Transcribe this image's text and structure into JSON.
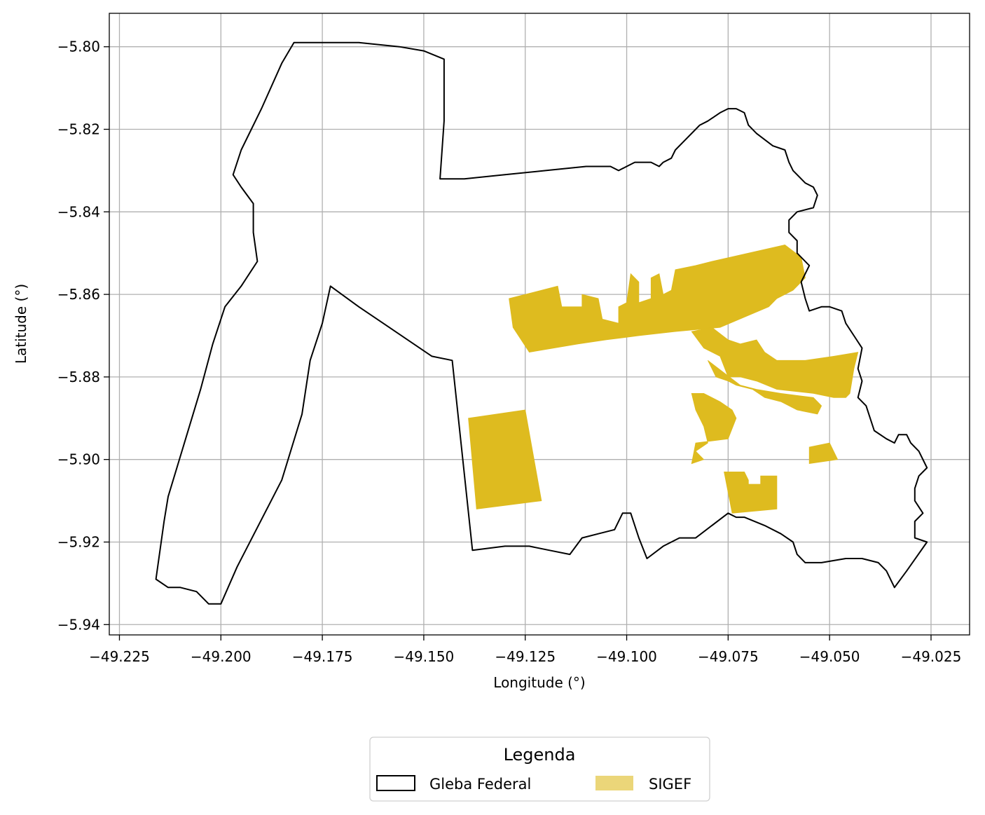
{
  "map": {
    "xlabel": "Longitude (°)",
    "ylabel": "Latitude (°)",
    "x_ticks": [
      "−49.225",
      "−49.200",
      "−49.175",
      "−49.150",
      "−49.125",
      "−49.100",
      "−49.075",
      "−49.050",
      "−49.025"
    ],
    "y_ticks": [
      "−5.80",
      "−5.82",
      "−5.84",
      "−5.86",
      "−5.88",
      "−5.90",
      "−5.92",
      "−5.94"
    ],
    "x_range": [
      -49.2275,
      -49.0155
    ],
    "y_range": [
      -5.9425,
      -5.7919
    ],
    "grid": true,
    "legend": {
      "title": "Legenda",
      "placement": "bottom-center",
      "items": [
        {
          "label": "Gleba Federal",
          "style": "outline",
          "color": "#000000"
        },
        {
          "label": "SIGEF",
          "style": "fill",
          "color": "#DEBB1F"
        }
      ]
    },
    "colors": {
      "gleba_edge": "#000000",
      "sigef_fill": "#DEBB1F",
      "grid": "#b0b0b0"
    },
    "gleba_federal_boundary": [
      [
        -49.216,
        -5.929
      ],
      [
        -49.213,
        -5.931
      ],
      [
        -49.21,
        -5.931
      ],
      [
        -49.206,
        -5.932
      ],
      [
        -49.203,
        -5.935
      ],
      [
        -49.2,
        -5.935
      ],
      [
        -49.196,
        -5.926
      ],
      [
        -49.185,
        -5.905
      ],
      [
        -49.18,
        -5.889
      ],
      [
        -49.178,
        -5.876
      ],
      [
        -49.175,
        -5.867
      ],
      [
        -49.173,
        -5.858
      ],
      [
        -49.166,
        -5.863
      ],
      [
        -49.16,
        -5.867
      ],
      [
        -49.148,
        -5.875
      ],
      [
        -49.143,
        -5.876
      ],
      [
        -49.138,
        -5.922
      ],
      [
        -49.13,
        -5.921
      ],
      [
        -49.124,
        -5.921
      ],
      [
        -49.119,
        -5.922
      ],
      [
        -49.114,
        -5.923
      ],
      [
        -49.111,
        -5.919
      ],
      [
        -49.107,
        -5.918
      ],
      [
        -49.103,
        -5.917
      ],
      [
        -49.101,
        -5.913
      ],
      [
        -49.099,
        -5.913
      ],
      [
        -49.097,
        -5.919
      ],
      [
        -49.095,
        -5.924
      ],
      [
        -49.091,
        -5.921
      ],
      [
        -49.087,
        -5.919
      ],
      [
        -49.083,
        -5.919
      ],
      [
        -49.075,
        -5.913
      ],
      [
        -49.073,
        -5.914
      ],
      [
        -49.071,
        -5.914
      ],
      [
        -49.066,
        -5.916
      ],
      [
        -49.062,
        -5.918
      ],
      [
        -49.059,
        -5.92
      ],
      [
        -49.058,
        -5.923
      ],
      [
        -49.056,
        -5.925
      ],
      [
        -49.052,
        -5.925
      ],
      [
        -49.046,
        -5.924
      ],
      [
        -49.042,
        -5.924
      ],
      [
        -49.038,
        -5.925
      ],
      [
        -49.036,
        -5.927
      ],
      [
        -49.034,
        -5.931
      ],
      [
        -49.031,
        -5.927
      ],
      [
        -49.026,
        -5.92
      ],
      [
        -49.029,
        -5.919
      ],
      [
        -49.029,
        -5.915
      ],
      [
        -49.027,
        -5.913
      ],
      [
        -49.029,
        -5.91
      ],
      [
        -49.029,
        -5.907
      ],
      [
        -49.028,
        -5.904
      ],
      [
        -49.026,
        -5.902
      ],
      [
        -49.028,
        -5.898
      ],
      [
        -49.03,
        -5.896
      ],
      [
        -49.031,
        -5.894
      ],
      [
        -49.033,
        -5.894
      ],
      [
        -49.034,
        -5.896
      ],
      [
        -49.036,
        -5.895
      ],
      [
        -49.039,
        -5.893
      ],
      [
        -49.04,
        -5.89
      ],
      [
        -49.041,
        -5.887
      ],
      [
        -49.043,
        -5.885
      ],
      [
        -49.042,
        -5.881
      ],
      [
        -49.043,
        -5.878
      ],
      [
        -49.042,
        -5.873
      ],
      [
        -49.044,
        -5.87
      ],
      [
        -49.046,
        -5.867
      ],
      [
        -49.047,
        -5.864
      ],
      [
        -49.05,
        -5.863
      ],
      [
        -49.052,
        -5.863
      ],
      [
        -49.055,
        -5.864
      ],
      [
        -49.056,
        -5.861
      ],
      [
        -49.057,
        -5.857
      ],
      [
        -49.055,
        -5.853
      ],
      [
        -49.058,
        -5.85
      ],
      [
        -49.058,
        -5.847
      ],
      [
        -49.06,
        -5.845
      ],
      [
        -49.06,
        -5.842
      ],
      [
        -49.058,
        -5.84
      ],
      [
        -49.054,
        -5.839
      ],
      [
        -49.053,
        -5.836
      ],
      [
        -49.054,
        -5.834
      ],
      [
        -49.056,
        -5.833
      ],
      [
        -49.057,
        -5.832
      ],
      [
        -49.059,
        -5.83
      ],
      [
        -49.06,
        -5.828
      ],
      [
        -49.061,
        -5.825
      ],
      [
        -49.064,
        -5.824
      ],
      [
        -49.068,
        -5.821
      ],
      [
        -49.07,
        -5.819
      ],
      [
        -49.071,
        -5.816
      ],
      [
        -49.073,
        -5.815
      ],
      [
        -49.075,
        -5.815
      ],
      [
        -49.077,
        -5.816
      ],
      [
        -49.08,
        -5.818
      ],
      [
        -49.082,
        -5.819
      ],
      [
        -49.083,
        -5.82
      ],
      [
        -49.086,
        -5.823
      ],
      [
        -49.088,
        -5.825
      ],
      [
        -49.089,
        -5.827
      ],
      [
        -49.091,
        -5.828
      ],
      [
        -49.092,
        -5.829
      ],
      [
        -49.094,
        -5.828
      ],
      [
        -49.096,
        -5.828
      ],
      [
        -49.098,
        -5.828
      ],
      [
        -49.1,
        -5.829
      ],
      [
        -49.102,
        -5.83
      ],
      [
        -49.104,
        -5.829
      ],
      [
        -49.11,
        -5.829
      ],
      [
        -49.12,
        -5.83
      ],
      [
        -49.13,
        -5.831
      ],
      [
        -49.14,
        -5.832
      ],
      [
        -49.146,
        -5.832
      ],
      [
        -49.145,
        -5.818
      ],
      [
        -49.145,
        -5.808
      ],
      [
        -49.145,
        -5.803
      ],
      [
        -49.15,
        -5.801
      ],
      [
        -49.156,
        -5.8
      ],
      [
        -49.166,
        -5.799
      ],
      [
        -49.175,
        -5.799
      ],
      [
        -49.182,
        -5.799
      ],
      [
        -49.185,
        -5.804
      ],
      [
        -49.19,
        -5.815
      ],
      [
        -49.195,
        -5.825
      ],
      [
        -49.197,
        -5.831
      ],
      [
        -49.195,
        -5.834
      ],
      [
        -49.192,
        -5.838
      ],
      [
        -49.192,
        -5.845
      ],
      [
        -49.191,
        -5.852
      ],
      [
        -49.195,
        -5.858
      ],
      [
        -49.199,
        -5.863
      ],
      [
        -49.202,
        -5.872
      ],
      [
        -49.205,
        -5.883
      ],
      [
        -49.209,
        -5.896
      ],
      [
        -49.213,
        -5.909
      ],
      [
        -49.214,
        -5.915
      ],
      [
        -49.216,
        -5.929
      ]
    ],
    "sigef_parcels": [
      [
        [
          -49.129,
          -5.861
        ],
        [
          -49.117,
          -5.858
        ],
        [
          -49.116,
          -5.863
        ],
        [
          -49.111,
          -5.863
        ],
        [
          -49.111,
          -5.86
        ],
        [
          -49.107,
          -5.861
        ],
        [
          -49.106,
          -5.866
        ],
        [
          -49.102,
          -5.867
        ],
        [
          -49.102,
          -5.863
        ],
        [
          -49.1,
          -5.862
        ],
        [
          -49.099,
          -5.855
        ],
        [
          -49.097,
          -5.857
        ],
        [
          -49.097,
          -5.862
        ],
        [
          -49.094,
          -5.861
        ],
        [
          -49.094,
          -5.856
        ],
        [
          -49.092,
          -5.855
        ],
        [
          -49.091,
          -5.86
        ],
        [
          -49.089,
          -5.859
        ],
        [
          -49.088,
          -5.854
        ],
        [
          -49.083,
          -5.853
        ],
        [
          -49.079,
          -5.852
        ],
        [
          -49.061,
          -5.848
        ],
        [
          -49.057,
          -5.851
        ],
        [
          -49.056,
          -5.856
        ],
        [
          -49.059,
          -5.859
        ],
        [
          -49.063,
          -5.861
        ],
        [
          -49.065,
          -5.863
        ],
        [
          -49.077,
          -5.868
        ],
        [
          -49.088,
          -5.869
        ],
        [
          -49.097,
          -5.87
        ],
        [
          -49.105,
          -5.871
        ],
        [
          -49.112,
          -5.872
        ],
        [
          -49.124,
          -5.874
        ],
        [
          -49.128,
          -5.868
        ]
      ],
      [
        [
          -49.084,
          -5.869
        ],
        [
          -49.079,
          -5.868
        ],
        [
          -49.075,
          -5.871
        ],
        [
          -49.072,
          -5.872
        ],
        [
          -49.068,
          -5.871
        ],
        [
          -49.066,
          -5.874
        ],
        [
          -49.063,
          -5.876
        ],
        [
          -49.056,
          -5.876
        ],
        [
          -49.049,
          -5.875
        ],
        [
          -49.043,
          -5.874
        ],
        [
          -49.044,
          -5.878
        ],
        [
          -49.045,
          -5.884
        ],
        [
          -49.046,
          -5.885
        ],
        [
          -49.049,
          -5.885
        ],
        [
          -49.054,
          -5.884
        ],
        [
          -49.063,
          -5.883
        ],
        [
          -49.068,
          -5.881
        ],
        [
          -49.072,
          -5.88
        ],
        [
          -49.075,
          -5.88
        ],
        [
          -49.077,
          -5.875
        ],
        [
          -49.081,
          -5.873
        ]
      ],
      [
        [
          -49.08,
          -5.876
        ],
        [
          -49.078,
          -5.88
        ],
        [
          -49.075,
          -5.881
        ],
        [
          -49.073,
          -5.882
        ],
        [
          -49.069,
          -5.883
        ],
        [
          -49.066,
          -5.885
        ],
        [
          -49.062,
          -5.886
        ],
        [
          -49.058,
          -5.888
        ],
        [
          -49.053,
          -5.889
        ],
        [
          -49.052,
          -5.887
        ],
        [
          -49.054,
          -5.885
        ],
        [
          -49.062,
          -5.884
        ],
        [
          -49.068,
          -5.883
        ],
        [
          -49.072,
          -5.882
        ]
      ],
      [
        [
          -49.081,
          -5.884
        ],
        [
          -49.084,
          -5.884
        ],
        [
          -49.083,
          -5.888
        ],
        [
          -49.081,
          -5.892
        ],
        [
          -49.08,
          -5.896
        ],
        [
          -49.083,
          -5.898
        ],
        [
          -49.081,
          -5.9
        ],
        [
          -49.084,
          -5.901
        ],
        [
          -49.083,
          -5.896
        ],
        [
          -49.075,
          -5.895
        ],
        [
          -49.073,
          -5.89
        ],
        [
          -49.074,
          -5.888
        ],
        [
          -49.077,
          -5.886
        ]
      ],
      [
        [
          -49.076,
          -5.903
        ],
        [
          -49.074,
          -5.913
        ],
        [
          -49.063,
          -5.912
        ],
        [
          -49.063,
          -5.904
        ],
        [
          -49.067,
          -5.904
        ],
        [
          -49.067,
          -5.906
        ],
        [
          -49.07,
          -5.906
        ],
        [
          -49.07,
          -5.905
        ],
        [
          -49.071,
          -5.903
        ]
      ],
      [
        [
          -49.139,
          -5.89
        ],
        [
          -49.125,
          -5.888
        ],
        [
          -49.121,
          -5.91
        ],
        [
          -49.137,
          -5.912
        ]
      ],
      [
        [
          -49.055,
          -5.897
        ],
        [
          -49.05,
          -5.896
        ],
        [
          -49.048,
          -5.9
        ],
        [
          -49.055,
          -5.901
        ]
      ]
    ]
  }
}
